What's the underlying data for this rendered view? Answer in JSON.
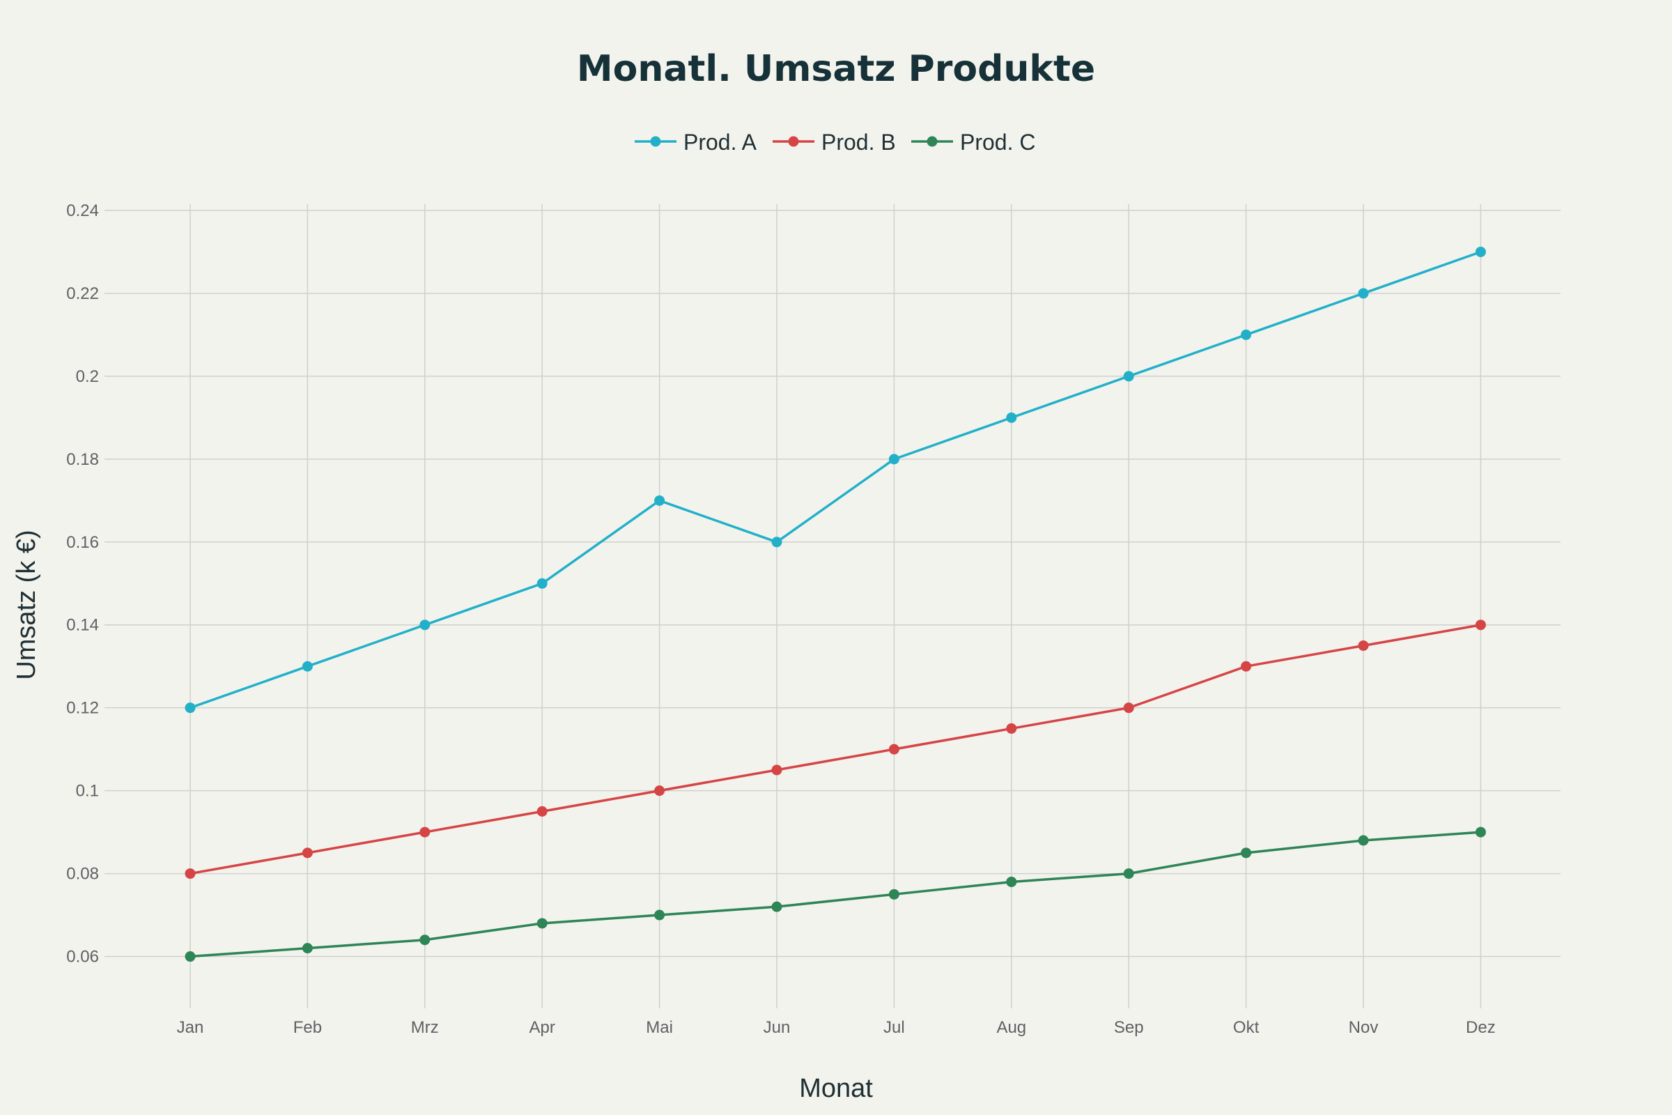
{
  "chart_data": {
    "type": "line",
    "title": "Monatl. Umsatz Produkte",
    "xlabel": "Monat",
    "ylabel": "Umsatz (k €)",
    "categories": [
      "Jan",
      "Feb",
      "Mrz",
      "Apr",
      "Mai",
      "Jun",
      "Jul",
      "Aug",
      "Sep",
      "Okt",
      "Nov",
      "Dez"
    ],
    "ylim": [
      0.05,
      0.24
    ],
    "yticks": [
      0.06,
      0.08,
      0.1,
      0.12,
      0.14,
      0.16,
      0.18,
      0.2,
      0.22,
      0.24
    ],
    "ytick_labels": [
      "0.06",
      "0.08",
      "0.1",
      "0.12",
      "0.14",
      "0.16",
      "0.18",
      "0.2",
      "0.22",
      "0.24"
    ],
    "grid": true,
    "legend_position": "top-center",
    "series": [
      {
        "name": "Prod. A",
        "color": "#22b0c9",
        "values": [
          0.12,
          0.13,
          0.14,
          0.15,
          0.17,
          0.16,
          0.18,
          0.19,
          0.2,
          0.21,
          0.22,
          0.23
        ]
      },
      {
        "name": "Prod. B",
        "color": "#d64545",
        "values": [
          0.08,
          0.085,
          0.09,
          0.095,
          0.1,
          0.105,
          0.11,
          0.115,
          0.12,
          0.13,
          0.135,
          0.14
        ]
      },
      {
        "name": "Prod. C",
        "color": "#2e8556",
        "values": [
          0.06,
          0.062,
          0.064,
          0.068,
          0.07,
          0.072,
          0.075,
          0.078,
          0.08,
          0.085,
          0.088,
          0.09
        ]
      }
    ]
  }
}
